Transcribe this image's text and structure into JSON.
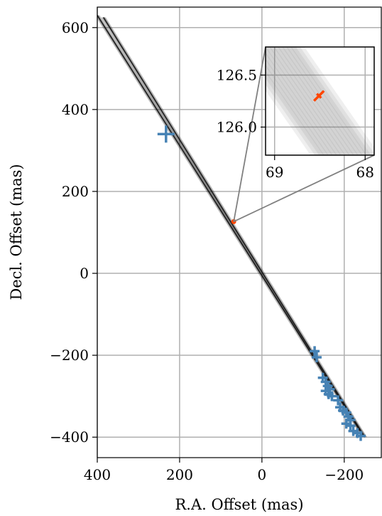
{
  "chart_data": [
    {
      "type": "scatter",
      "xlabel": "R.A. Offset (mas)",
      "ylabel": "Decl. Offset (mas)",
      "xlim": [
        400,
        -290
      ],
      "ylim": [
        -450,
        650
      ],
      "x_ticks": [
        400,
        200,
        0,
        -200
      ],
      "x_tick_labels": [
        "400",
        "200",
        "0",
        "−200"
      ],
      "y_ticks": [
        600,
        400,
        200,
        0,
        -200,
        -400
      ],
      "y_tick_labels": [
        "600",
        "400",
        "200",
        "0",
        "−200",
        "−400"
      ],
      "grid": true,
      "orbit_tracks": [
        {
          "x": [
            400,
            -245
          ],
          "y": [
            630,
            -395
          ]
        },
        {
          "x": [
            385,
            -250
          ],
          "y": [
            625,
            -400
          ]
        }
      ],
      "astrometry_points": [
        {
          "x": 233,
          "y": 340
        },
        {
          "x": -128,
          "y": -190
        },
        {
          "x": -133,
          "y": -205
        },
        {
          "x": -148,
          "y": -255
        },
        {
          "x": -155,
          "y": -265
        },
        {
          "x": -160,
          "y": -275
        },
        {
          "x": -165,
          "y": -283
        },
        {
          "x": -155,
          "y": -287
        },
        {
          "x": -162,
          "y": -295
        },
        {
          "x": -170,
          "y": -300
        },
        {
          "x": -185,
          "y": -310
        },
        {
          "x": -190,
          "y": -327
        },
        {
          "x": -197,
          "y": -335
        },
        {
          "x": -205,
          "y": -340
        },
        {
          "x": -210,
          "y": -350
        },
        {
          "x": -215,
          "y": -358
        },
        {
          "x": -205,
          "y": -367
        },
        {
          "x": -215,
          "y": -372
        },
        {
          "x": -222,
          "y": -385
        },
        {
          "x": -232,
          "y": -390
        },
        {
          "x": -240,
          "y": -397
        }
      ],
      "highlight_point": {
        "x": 68.5,
        "y": 126.3
      },
      "colors": {
        "points": "#4682b4",
        "highlight": "#ff4500",
        "tracks": "#111111",
        "grid": "#b0b0b0"
      }
    },
    {
      "type": "scatter",
      "xlim": [
        69.1,
        67.9
      ],
      "ylim": [
        125.73,
        126.77
      ],
      "x_ticks": [
        69,
        68
      ],
      "x_tick_labels": [
        "69",
        "68"
      ],
      "y_ticks": [
        126.5,
        126.0
      ],
      "y_tick_labels": [
        "126.5",
        "126.0"
      ],
      "grid": true,
      "highlight_point": {
        "x": 68.51,
        "y": 126.3
      }
    }
  ]
}
